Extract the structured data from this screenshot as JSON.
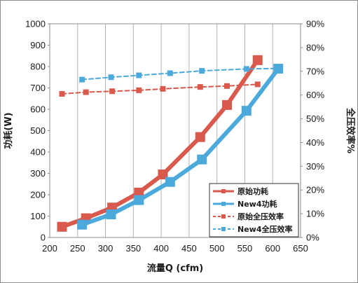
{
  "chart_data": {
    "type": "line",
    "title": "",
    "xlabel": "流量Q (cfm)",
    "ylabel_left": "功耗(W)",
    "ylabel_right": "全压效率%",
    "xlim": [
      200,
      650
    ],
    "ylim_left": [
      0,
      1000
    ],
    "ylim_right": [
      0,
      90
    ],
    "x_ticks": [
      "200",
      "250",
      "300",
      "350",
      "400",
      "450",
      "500",
      "550",
      "600",
      "650"
    ],
    "y_left_ticks": [
      "0",
      "100",
      "200",
      "300",
      "400",
      "500",
      "600",
      "700",
      "800",
      "900",
      "1000"
    ],
    "y_right_ticks": [
      "0%",
      "10%",
      "20%",
      "30%",
      "40%",
      "50%",
      "60%",
      "70%",
      "80%",
      "90%"
    ],
    "grid": {
      "vertical": true,
      "horizontal": false
    },
    "legend_position": "bottom-right",
    "series": [
      {
        "name": "原始功耗",
        "axis": "left",
        "style": "solid",
        "color": "#d9594c",
        "points": [
          [
            222,
            50
          ],
          [
            265,
            90
          ],
          [
            312,
            140
          ],
          [
            360,
            210
          ],
          [
            403,
            295
          ],
          [
            470,
            470
          ],
          [
            518,
            620
          ],
          [
            573,
            830
          ]
        ]
      },
      {
        "name": "New4功耗",
        "axis": "left",
        "style": "solid",
        "color": "#4ba9dc",
        "points": [
          [
            258,
            60
          ],
          [
            310,
            108
          ],
          [
            360,
            175
          ],
          [
            416,
            260
          ],
          [
            473,
            365
          ],
          [
            553,
            593
          ],
          [
            610,
            790
          ]
        ]
      },
      {
        "name": "原始全压效率",
        "axis": "right",
        "style": "dashed",
        "color": "#d9594c",
        "points": [
          [
            222,
            60.5
          ],
          [
            265,
            61.2
          ],
          [
            312,
            61.6
          ],
          [
            360,
            62.0
          ],
          [
            403,
            62.6
          ],
          [
            470,
            63.4
          ],
          [
            518,
            63.8
          ],
          [
            573,
            64.5
          ]
        ]
      },
      {
        "name": "New4全压效率",
        "axis": "right",
        "style": "dashed",
        "color": "#4ba9dc",
        "points": [
          [
            258,
            66.5
          ],
          [
            310,
            67.5
          ],
          [
            360,
            68.3
          ],
          [
            416,
            69.2
          ],
          [
            473,
            70.2
          ],
          [
            553,
            71.0
          ],
          [
            610,
            71.2
          ]
        ]
      }
    ]
  }
}
